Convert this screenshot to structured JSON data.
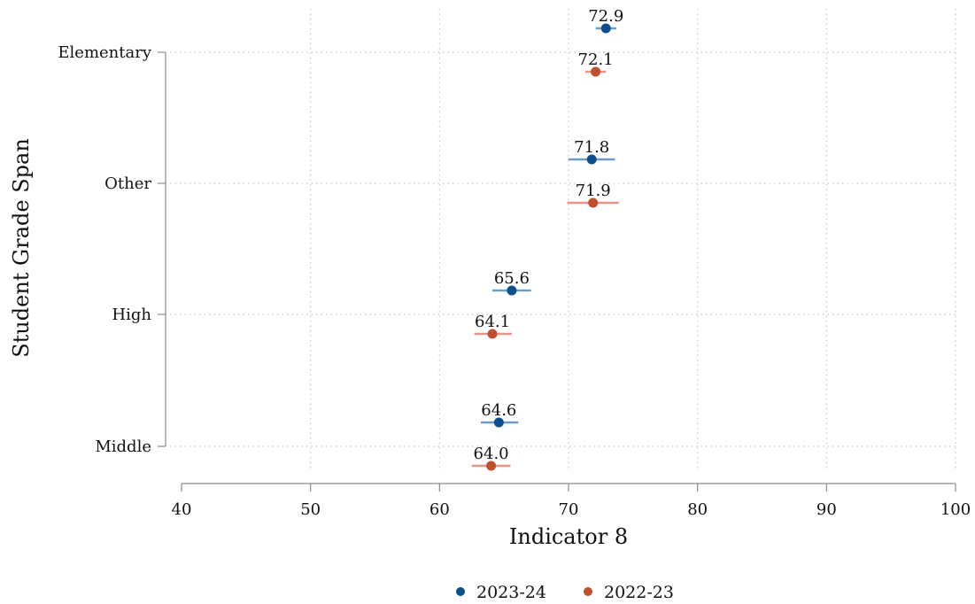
{
  "chart_data": {
    "type": "scatter",
    "orientation": "horizontal",
    "xlabel": "Indicator 8",
    "ylabel": "Student Grade Span",
    "xlim": [
      40,
      100
    ],
    "xticks": [
      40,
      50,
      60,
      70,
      80,
      90,
      100
    ],
    "categories": [
      "Elementary",
      "Other",
      "High",
      "Middle"
    ],
    "grid": "dotted",
    "legend_position": "bottom",
    "series": [
      {
        "name": "2023-24",
        "color": "#0b4f8c",
        "ci_color": "#6e9cc7",
        "values": [
          72.9,
          71.8,
          65.6,
          64.6
        ],
        "labels": [
          "72.9",
          "71.8",
          "65.6",
          "64.6"
        ],
        "ci": [
          [
            72.1,
            73.7
          ],
          [
            70.0,
            73.6
          ],
          [
            64.1,
            67.1
          ],
          [
            63.2,
            66.1
          ]
        ]
      },
      {
        "name": "2022-23",
        "color": "#c0502d",
        "ci_color": "#e8968a",
        "values": [
          72.1,
          71.9,
          64.1,
          64.0
        ],
        "labels": [
          "72.1",
          "71.9",
          "64.1",
          "64.0"
        ],
        "ci": [
          [
            71.3,
            72.9
          ],
          [
            69.9,
            73.9
          ],
          [
            62.7,
            65.6
          ],
          [
            62.5,
            65.5
          ]
        ]
      }
    ]
  }
}
